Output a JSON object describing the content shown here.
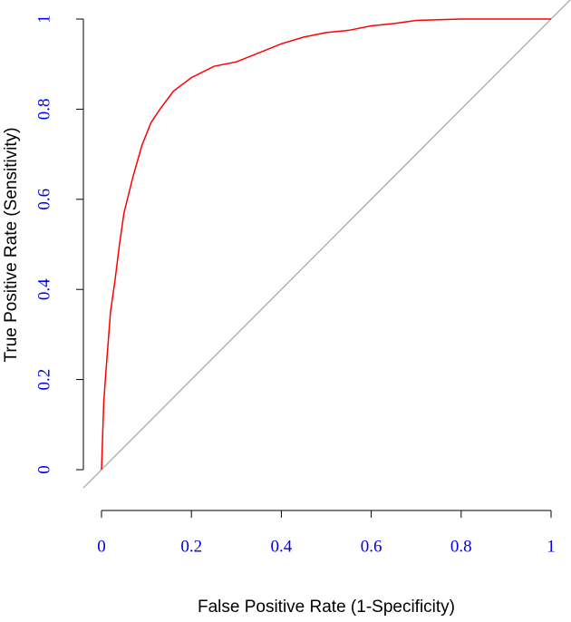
{
  "chart_data": {
    "type": "line",
    "x_label": "False Positive Rate (1-Specificity)",
    "y_label": "True Positive Rate (Sensitivity)",
    "xlim": [
      0,
      1
    ],
    "ylim": [
      0,
      1
    ],
    "xticks": [
      0,
      0.2,
      0.4,
      0.6,
      0.8,
      1
    ],
    "yticks": [
      0,
      0.2,
      0.4,
      0.6,
      0.8,
      1
    ],
    "reference_line": true,
    "series": [
      {
        "color": "#ff0000",
        "x": [
          0,
          0.005,
          0.01,
          0.02,
          0.03,
          0.04,
          0.05,
          0.07,
          0.09,
          0.11,
          0.13,
          0.16,
          0.2,
          0.25,
          0.3,
          0.35,
          0.4,
          0.45,
          0.5,
          0.55,
          0.6,
          0.65,
          0.7,
          0.8,
          0.9,
          1
        ],
        "values": [
          0,
          0.15,
          0.22,
          0.35,
          0.42,
          0.5,
          0.57,
          0.65,
          0.72,
          0.77,
          0.8,
          0.84,
          0.87,
          0.895,
          0.905,
          0.925,
          0.945,
          0.96,
          0.97,
          0.975,
          0.985,
          0.99,
          0.997,
          1,
          1,
          1
        ]
      }
    ]
  }
}
